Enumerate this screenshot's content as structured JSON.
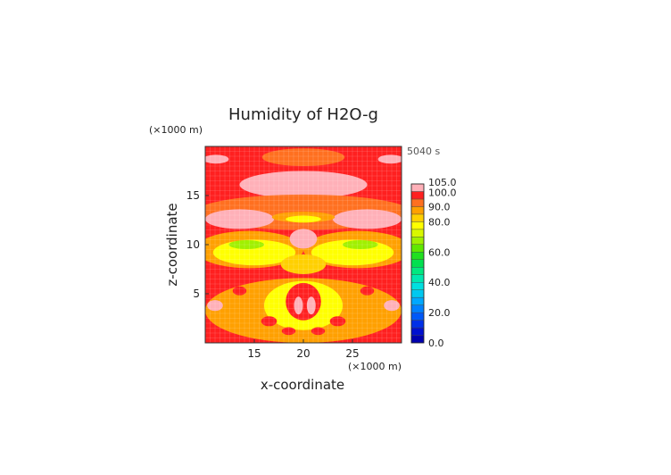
{
  "chart_data": {
    "type": "heatmap",
    "title": "Humidity of H2O-g",
    "xlabel": "x-coordinate",
    "ylabel": "z-coordinate",
    "x_unit": "(×1000 m)",
    "y_unit": "(×1000 m)",
    "time_label": "5040 s",
    "xlim": [
      10,
      30
    ],
    "ylim": [
      0,
      20
    ],
    "x_ticks": [
      "15",
      "20",
      "25"
    ],
    "y_ticks": [
      "5",
      "10",
      "15"
    ],
    "grid": true,
    "colorbar": {
      "range": [
        0,
        105
      ],
      "labels": [
        "0.0",
        "20.0",
        "40.0",
        "60.0",
        "80.0",
        "90.0",
        "100.0",
        "105.0"
      ],
      "bands": [
        {
          "from": 0,
          "to": 5,
          "color": "#0000b0"
        },
        {
          "from": 5,
          "to": 10,
          "color": "#0010d0"
        },
        {
          "from": 10,
          "to": 15,
          "color": "#0030e8"
        },
        {
          "from": 15,
          "to": 20,
          "color": "#0058f8"
        },
        {
          "from": 20,
          "to": 25,
          "color": "#0080ff"
        },
        {
          "from": 25,
          "to": 30,
          "color": "#00a8ff"
        },
        {
          "from": 30,
          "to": 35,
          "color": "#00c8f0"
        },
        {
          "from": 35,
          "to": 40,
          "color": "#00e0e0"
        },
        {
          "from": 40,
          "to": 45,
          "color": "#00e8b0"
        },
        {
          "from": 45,
          "to": 50,
          "color": "#00e880"
        },
        {
          "from": 50,
          "to": 55,
          "color": "#00e050"
        },
        {
          "from": 55,
          "to": 60,
          "color": "#20e020"
        },
        {
          "from": 60,
          "to": 65,
          "color": "#60e800"
        },
        {
          "from": 65,
          "to": 70,
          "color": "#a0f000"
        },
        {
          "from": 70,
          "to": 75,
          "color": "#d8f800"
        },
        {
          "from": 75,
          "to": 80,
          "color": "#ffff00"
        },
        {
          "from": 80,
          "to": 85,
          "color": "#ffd000"
        },
        {
          "from": 85,
          "to": 90,
          "color": "#ffa000"
        },
        {
          "from": 90,
          "to": 95,
          "color": "#ff7020"
        },
        {
          "from": 95,
          "to": 100,
          "color": "#ff2020"
        },
        {
          "from": 100,
          "to": 105,
          "color": "#ffb0b8"
        }
      ]
    },
    "regions": [
      {
        "level": 95,
        "shape": "rect",
        "x": [
          10,
          30
        ],
        "y": [
          0,
          20
        ]
      },
      {
        "level": 90,
        "shape": "ellipse",
        "cx": 20,
        "cy": 18.9,
        "rx": 4.2,
        "ry": 0.9
      },
      {
        "level": 100,
        "shape": "ellipse",
        "cx": 11.1,
        "cy": 18.7,
        "rx": 1.3,
        "ry": 0.45
      },
      {
        "level": 100,
        "shape": "ellipse",
        "cx": 28.9,
        "cy": 18.7,
        "rx": 1.3,
        "ry": 0.45
      },
      {
        "level": 100,
        "shape": "ellipse",
        "cx": 20,
        "cy": 16.1,
        "rx": 6.5,
        "ry": 1.4
      },
      {
        "level": 90,
        "shape": "ellipse",
        "cx": 20,
        "cy": 13.3,
        "rx": 11,
        "ry": 1.8
      },
      {
        "level": 100,
        "shape": "ellipse",
        "cx": 13.5,
        "cy": 12.6,
        "rx": 3.5,
        "ry": 1.0
      },
      {
        "level": 100,
        "shape": "ellipse",
        "cx": 26.5,
        "cy": 12.6,
        "rx": 3.5,
        "ry": 1.0
      },
      {
        "level": 85,
        "shape": "ellipse",
        "cx": 20,
        "cy": 12.8,
        "rx": 3.2,
        "ry": 0.55
      },
      {
        "level": 75,
        "shape": "ellipse",
        "cx": 20,
        "cy": 12.6,
        "rx": 1.8,
        "ry": 0.35
      },
      {
        "level": 85,
        "shape": "ellipse",
        "cx": 14.5,
        "cy": 9.5,
        "rx": 5.5,
        "ry": 1.9
      },
      {
        "level": 85,
        "shape": "ellipse",
        "cx": 25.5,
        "cy": 9.5,
        "rx": 5.5,
        "ry": 1.9
      },
      {
        "level": 75,
        "shape": "ellipse",
        "cx": 15,
        "cy": 9.2,
        "rx": 4.2,
        "ry": 1.3
      },
      {
        "level": 75,
        "shape": "ellipse",
        "cx": 25,
        "cy": 9.2,
        "rx": 4.2,
        "ry": 1.3
      },
      {
        "level": 65,
        "shape": "ellipse",
        "cx": 14.2,
        "cy": 10.0,
        "rx": 1.8,
        "ry": 0.45
      },
      {
        "level": 65,
        "shape": "ellipse",
        "cx": 25.8,
        "cy": 10.0,
        "rx": 1.8,
        "ry": 0.45
      },
      {
        "level": 100,
        "shape": "ellipse",
        "cx": 20,
        "cy": 10.6,
        "rx": 1.4,
        "ry": 1.0
      },
      {
        "level": 80,
        "shape": "ellipse",
        "cx": 20,
        "cy": 8.0,
        "rx": 2.3,
        "ry": 1.0
      },
      {
        "level": 85,
        "shape": "ellipse",
        "cx": 20,
        "cy": 3.3,
        "rx": 10,
        "ry": 3.3
      },
      {
        "level": 75,
        "shape": "ellipse",
        "cx": 20,
        "cy": 3.8,
        "rx": 4.0,
        "ry": 2.5
      },
      {
        "level": 95,
        "shape": "ellipse",
        "cx": 20,
        "cy": 4.2,
        "rx": 1.8,
        "ry": 1.9
      },
      {
        "level": 100,
        "shape": "ellipse",
        "cx": 19.5,
        "cy": 3.8,
        "rx": 0.45,
        "ry": 0.9
      },
      {
        "level": 100,
        "shape": "ellipse",
        "cx": 20.8,
        "cy": 3.8,
        "rx": 0.45,
        "ry": 0.9
      },
      {
        "level": 95,
        "shape": "ellipse",
        "cx": 13.5,
        "cy": 5.3,
        "rx": 0.7,
        "ry": 0.45
      },
      {
        "level": 95,
        "shape": "ellipse",
        "cx": 26.5,
        "cy": 5.3,
        "rx": 0.7,
        "ry": 0.45
      },
      {
        "level": 100,
        "shape": "ellipse",
        "cx": 11.0,
        "cy": 3.8,
        "rx": 0.8,
        "ry": 0.55
      },
      {
        "level": 100,
        "shape": "ellipse",
        "cx": 29.0,
        "cy": 3.8,
        "rx": 0.8,
        "ry": 0.55
      },
      {
        "level": 95,
        "shape": "ellipse",
        "cx": 16.5,
        "cy": 2.2,
        "rx": 0.8,
        "ry": 0.5
      },
      {
        "level": 95,
        "shape": "ellipse",
        "cx": 23.5,
        "cy": 2.2,
        "rx": 0.8,
        "ry": 0.5
      },
      {
        "level": 95,
        "shape": "ellipse",
        "cx": 18.5,
        "cy": 1.2,
        "rx": 0.7,
        "ry": 0.4
      },
      {
        "level": 95,
        "shape": "ellipse",
        "cx": 21.5,
        "cy": 1.2,
        "rx": 0.7,
        "ry": 0.4
      }
    ]
  }
}
